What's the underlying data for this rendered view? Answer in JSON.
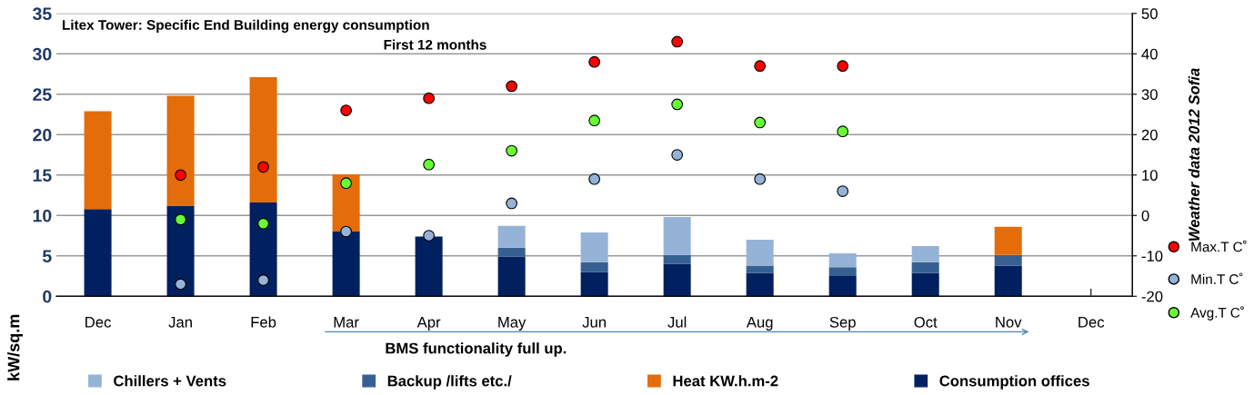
{
  "chart_data": {
    "type": "bar",
    "stacked": true,
    "title": "Litex Tower: Specific End Building energy consumption",
    "subtitle": "First 12 months",
    "ylabel": "kW/sq.m",
    "y2label": "Weather data 2012 Sofia",
    "categories": [
      "Dec",
      "Jan",
      "Feb",
      "Mar",
      "Apr",
      "May",
      "Jun",
      "Jul",
      "Aug",
      "Sep",
      "Oct",
      "Nov",
      "Dec"
    ],
    "series": [
      {
        "name": "Consumption offices",
        "color": "#002060",
        "values": [
          10.8,
          11.2,
          11.6,
          8.0,
          7.4,
          4.9,
          3.0,
          4.0,
          2.9,
          2.5,
          2.9,
          3.8,
          null
        ]
      },
      {
        "name": "Backup /lifts etc./",
        "color": "#366092",
        "values": [
          null,
          null,
          null,
          null,
          null,
          1.1,
          1.2,
          1.1,
          0.9,
          1.1,
          1.3,
          1.3,
          null
        ]
      },
      {
        "name": "Chillers + Vents",
        "color": "#95b3d7",
        "values": [
          null,
          null,
          null,
          null,
          null,
          2.7,
          3.7,
          4.7,
          3.2,
          1.7,
          2.0,
          null,
          null
        ]
      },
      {
        "name": "Heat KW.h.m-2",
        "color": "#e46c0a",
        "values": [
          12.1,
          13.6,
          15.5,
          7.1,
          null,
          null,
          null,
          null,
          null,
          null,
          null,
          3.5,
          null
        ]
      },
      {
        "name": "Max.T C˚",
        "type": "scatter",
        "axis": "y2",
        "color": "#ff0000",
        "values": [
          null,
          10,
          12,
          26,
          29,
          32,
          38,
          43,
          37,
          37,
          null,
          null,
          null
        ]
      },
      {
        "name": "Min.T C˚",
        "type": "scatter",
        "axis": "y2",
        "color": "#95b3d7",
        "values": [
          null,
          -17,
          -16,
          -4,
          -5,
          3,
          9,
          15,
          9,
          6,
          null,
          null,
          null
        ]
      },
      {
        "name": "Avg.T C˚",
        "type": "scatter",
        "axis": "y2",
        "color": "#66ff33",
        "values": [
          null,
          -1,
          -2,
          8,
          12.6,
          16,
          23.5,
          27.5,
          23,
          20.8,
          null,
          null,
          null
        ]
      }
    ],
    "ylim": [
      0,
      35
    ],
    "yticks": [
      0,
      5,
      10,
      15,
      20,
      25,
      30,
      35
    ],
    "y2lim": [
      -20,
      50
    ],
    "y2ticks": [
      -20,
      -10,
      0,
      10,
      20,
      30,
      40,
      50
    ],
    "grid": "y",
    "legend": "bottom",
    "marker": "circle",
    "annotations": [
      "BMS functionality full up."
    ]
  }
}
